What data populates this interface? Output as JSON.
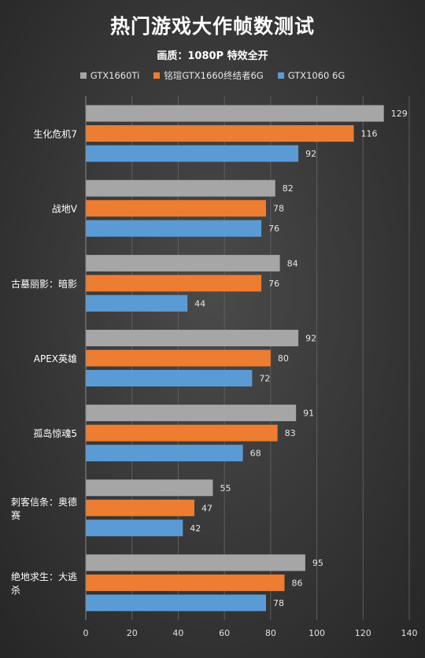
{
  "chart_data": {
    "type": "bar",
    "orientation": "horizontal",
    "title": "热门游戏大作帧数测试",
    "subtitle": "画质：1080P  特效全开",
    "categories": [
      "生化危机7",
      "战地V",
      "古墓丽影：暗影",
      "APEX英雄",
      "孤岛惊魂5",
      "刺客信条：奥德赛",
      "绝地求生：大逃杀"
    ],
    "category_lines": [
      [
        "生化危机7"
      ],
      [
        "战地V"
      ],
      [
        "古墓丽影：暗影"
      ],
      [
        "APEX英雄"
      ],
      [
        "孤岛惊魂5"
      ],
      [
        "刺客信条：奥德",
        "赛"
      ],
      [
        "绝地求生：大逃",
        "杀"
      ]
    ],
    "series": [
      {
        "name": "GTX1660Ti",
        "color": "#a6a6a6",
        "values": [
          129,
          82,
          84,
          92,
          91,
          55,
          95
        ]
      },
      {
        "name": "铭瑄GTX1660终结者6G",
        "color": "#ed7d31",
        "values": [
          116,
          78,
          76,
          80,
          83,
          47,
          86
        ]
      },
      {
        "name": "GTX1060 6G",
        "color": "#5b9bd5",
        "values": [
          92,
          76,
          44,
          72,
          68,
          42,
          78
        ]
      }
    ],
    "xlim": [
      0,
      140
    ],
    "xticks": [
      0,
      20,
      40,
      60,
      80,
      100,
      120,
      140
    ],
    "grid": true,
    "legend_position": "top"
  }
}
